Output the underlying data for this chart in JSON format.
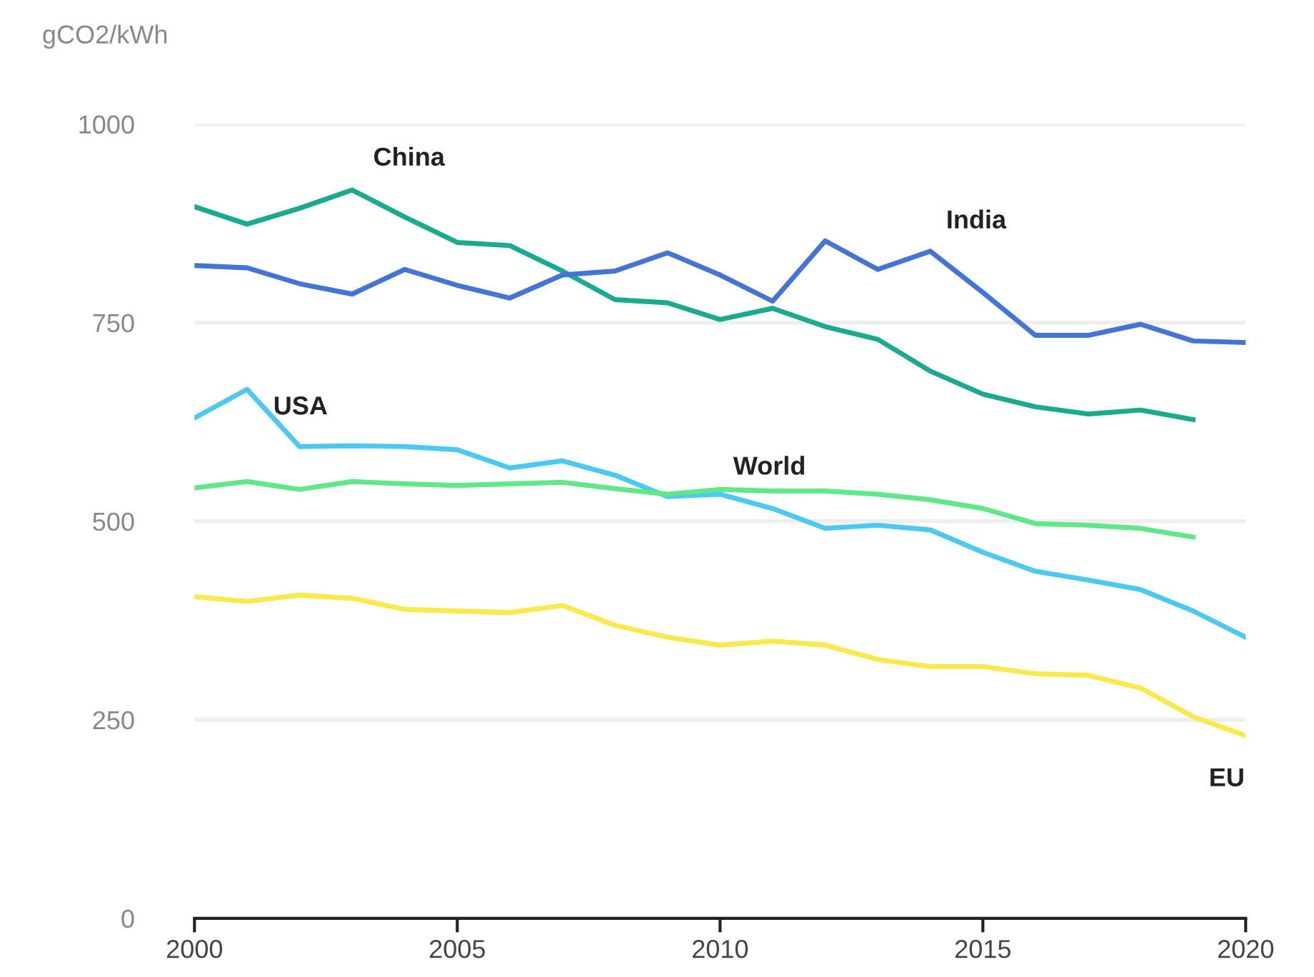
{
  "chart_data": {
    "type": "line",
    "ylabel": "gCO2/kWh",
    "xlim": [
      2000,
      2020
    ],
    "xticks": [
      2000,
      2005,
      2010,
      2015,
      2020
    ],
    "ylim": [
      0,
      1000
    ],
    "yticks": [
      0,
      250,
      500,
      750,
      1000
    ],
    "grid": "y",
    "legend": false,
    "marker": "none",
    "line_style": "solid",
    "x": [
      2000,
      2001,
      2002,
      2003,
      2004,
      2005,
      2006,
      2007,
      2008,
      2009,
      2010,
      2011,
      2012,
      2013,
      2014,
      2015,
      2016,
      2017,
      2018,
      2019,
      2020
    ],
    "series": [
      {
        "name": "China",
        "color": "#1aab8f",
        "values": [
          896,
          874,
          894,
          917,
          883,
          851,
          847,
          815,
          779,
          775,
          754,
          768,
          745,
          729,
          689,
          660,
          644,
          635,
          640,
          628,
          null
        ]
      },
      {
        "name": "India",
        "color": "#4474d4",
        "values": [
          822,
          819,
          799,
          786,
          817,
          797,
          781,
          810,
          815,
          838,
          810,
          777,
          853,
          817,
          840,
          788,
          734,
          734,
          748,
          727,
          725
        ]
      },
      {
        "name": "USA",
        "color": "#4cc9f0",
        "values": [
          630,
          666,
          594,
          595,
          594,
          590,
          567,
          576,
          558,
          531,
          534,
          516,
          491,
          495,
          489,
          461,
          437,
          426,
          414,
          387,
          354
        ]
      },
      {
        "name": "World",
        "color": "#61e68a",
        "values": [
          542,
          550,
          540,
          550,
          547,
          545,
          547,
          549,
          541,
          534,
          540,
          538,
          538,
          534,
          527,
          516,
          497,
          495,
          491,
          480,
          null
        ]
      },
      {
        "name": "EU",
        "color": "#f9e94a",
        "values": [
          405,
          399,
          407,
          403,
          389,
          387,
          385,
          394,
          369,
          354,
          344,
          349,
          344,
          326,
          317,
          317,
          308,
          306,
          290,
          254,
          230
        ]
      }
    ]
  }
}
